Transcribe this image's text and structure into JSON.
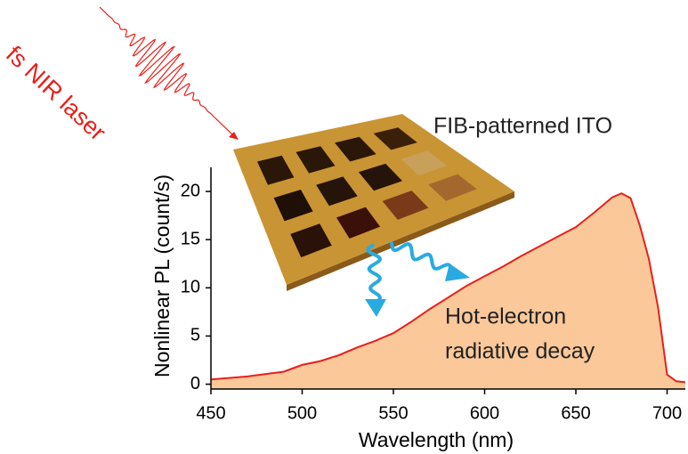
{
  "chart_data": {
    "type": "area",
    "x_label": "Wavelength (nm)",
    "y_label": "Nonlinear PL (count/s)",
    "annotations": [
      "fs NIR laser",
      "FIB-patterned ITO",
      "Hot-electron",
      "radiative decay"
    ],
    "x": [
      450,
      470,
      490,
      500,
      510,
      520,
      530,
      540,
      550,
      560,
      570,
      580,
      590,
      600,
      610,
      620,
      630,
      640,
      650,
      660,
      670,
      675,
      680,
      685,
      690,
      695,
      700,
      705,
      710
    ],
    "series": [
      {
        "color": "#e8201a",
        "fill": "#fbc89a",
        "values": [
          0.5,
          0.8,
          1.3,
          2.0,
          2.4,
          3.0,
          3.8,
          4.5,
          5.3,
          6.5,
          7.8,
          9.0,
          10.2,
          11.2,
          12.2,
          13.3,
          14.3,
          15.3,
          16.3,
          17.8,
          19.4,
          19.8,
          19.3,
          16.5,
          13,
          8,
          1,
          0.3,
          0.2
        ]
      }
    ],
    "xlim": [
      450,
      710
    ],
    "ylim": [
      -0.5,
      22.5
    ],
    "xticks": [
      450,
      500,
      550,
      600,
      650,
      700
    ],
    "yticks": [
      0,
      5,
      10,
      15,
      20
    ]
  }
}
